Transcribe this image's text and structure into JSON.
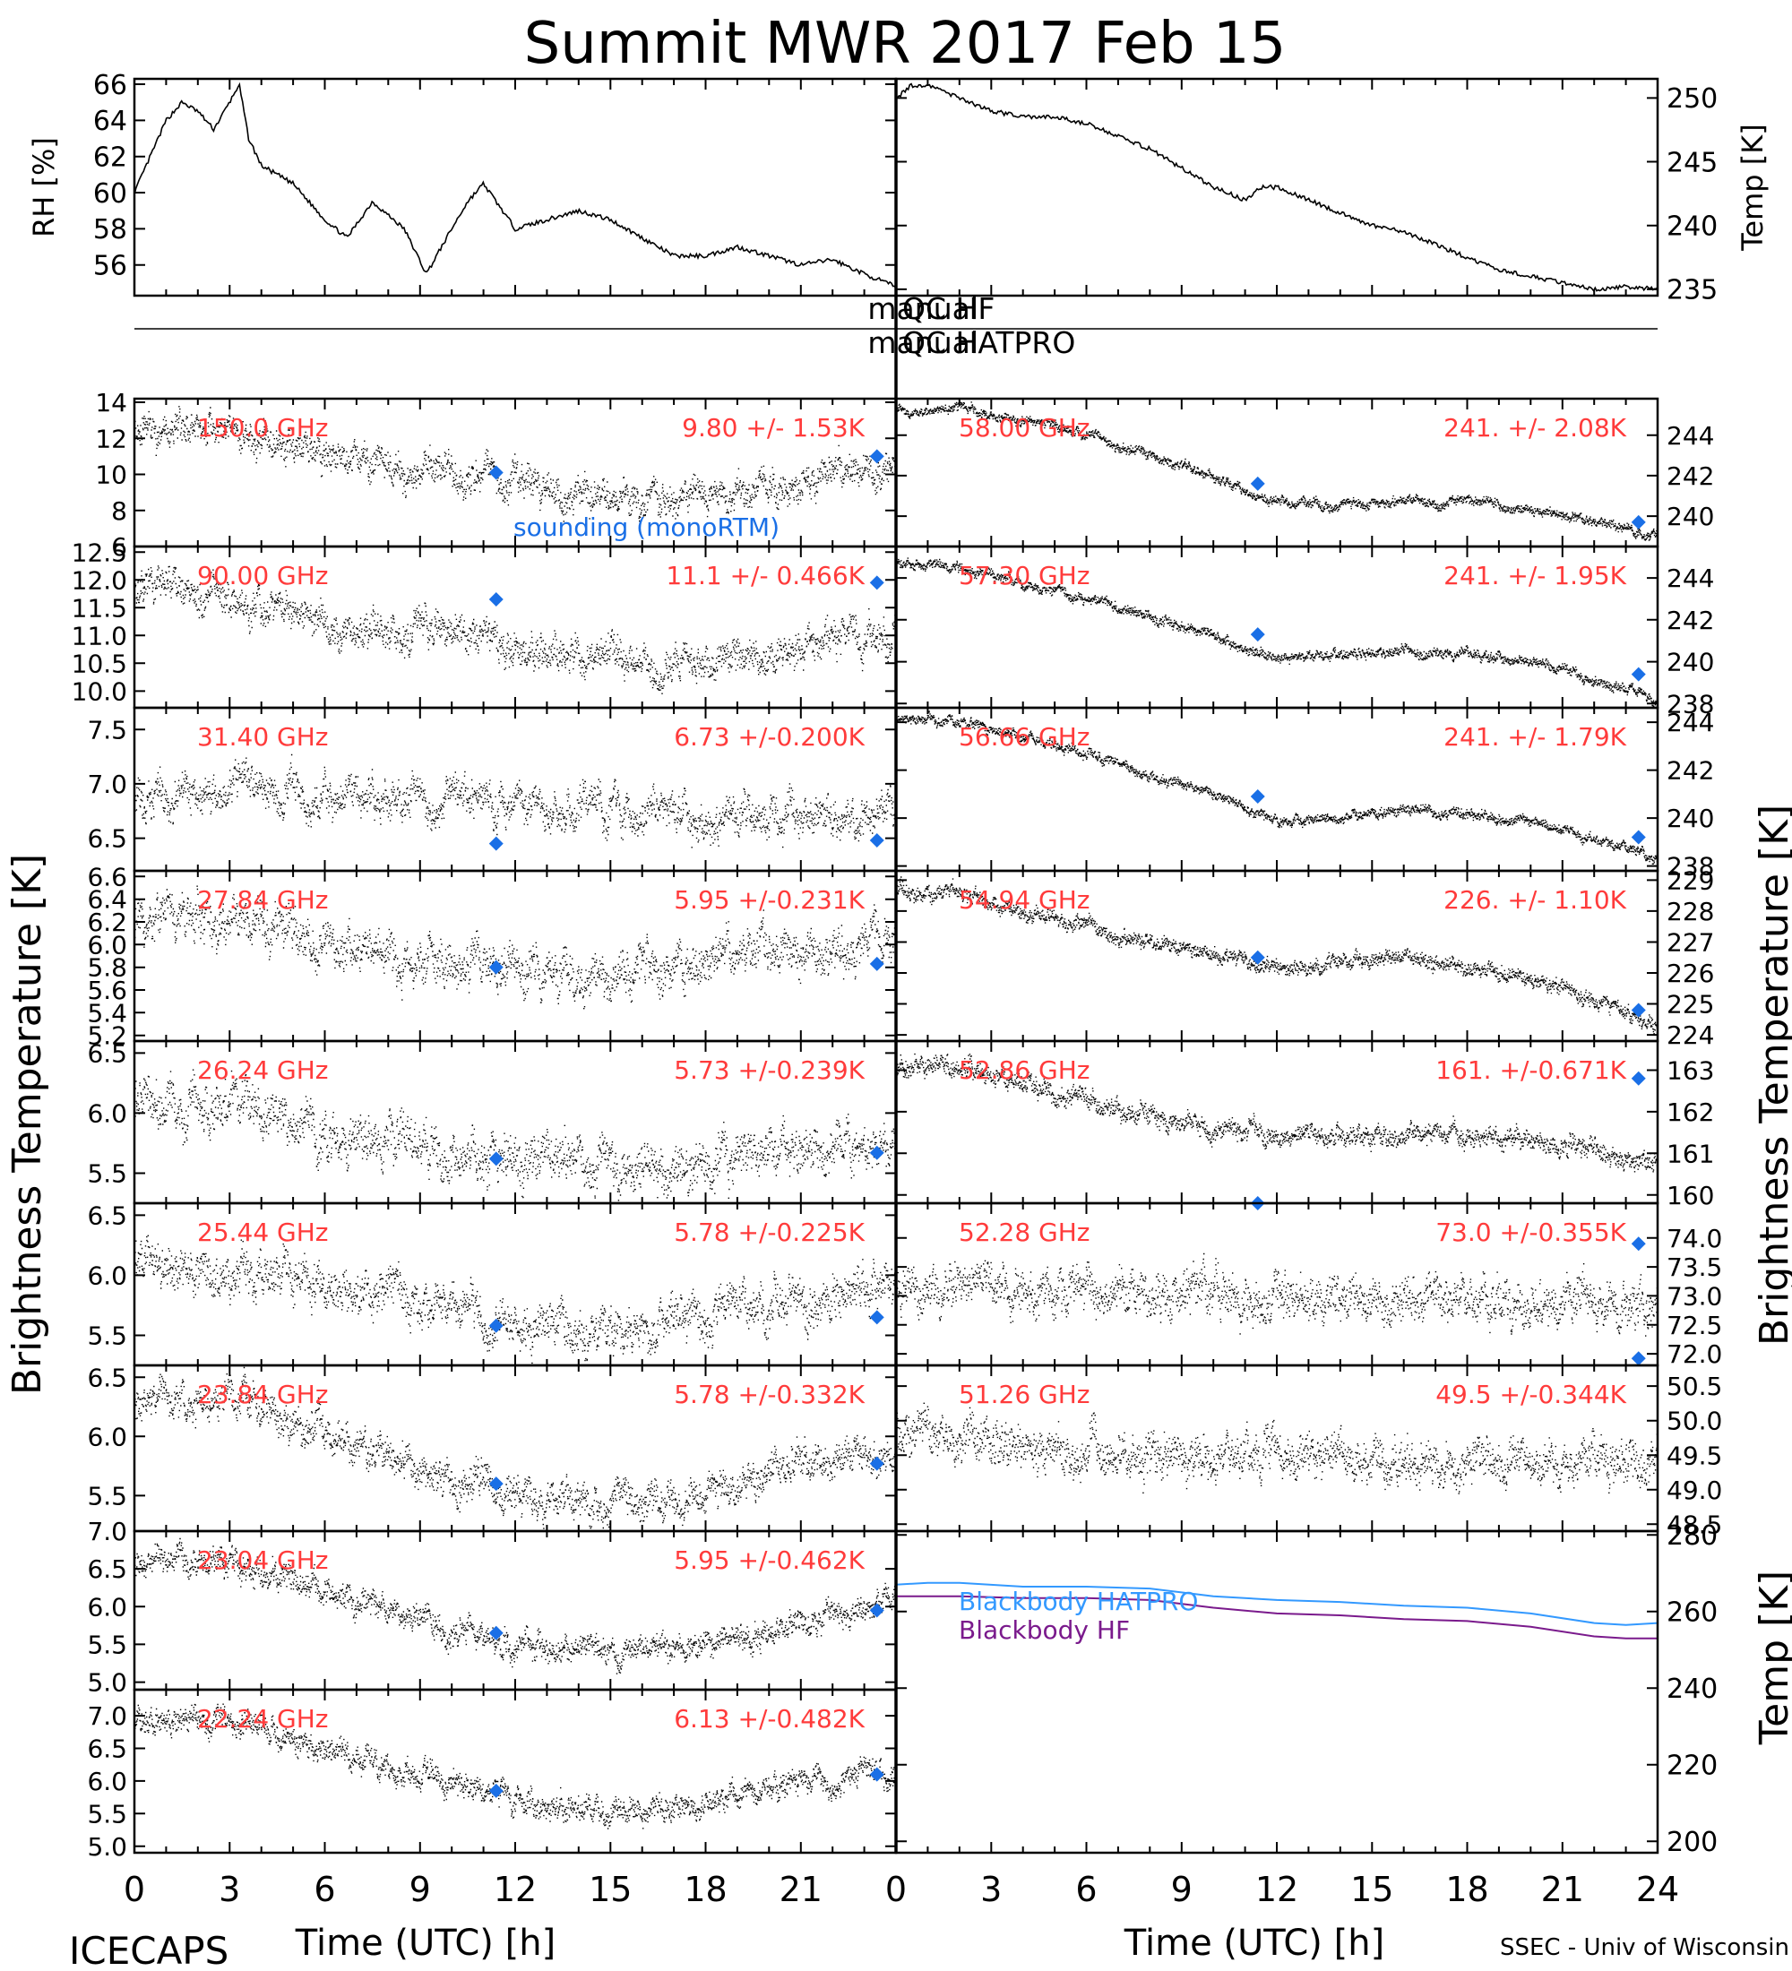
{
  "title": "Summit MWR 2017 Feb 15",
  "footer": {
    "left": "ICECAPS",
    "right": "SSEC - Univ of Wisconsin",
    "xlabel_left": "Time (UTC) [h]",
    "xlabel_right": "Time (UTC) [h]"
  },
  "side_labels": {
    "left": "Brightness Temperature [K]",
    "right": "Brightness Temperature [K]",
    "bottom_right": "Temp [K]"
  },
  "qc_labels": {
    "hf_left": "manual",
    "hf_right": "QC HF",
    "hatpro_left": "manual",
    "hatpro_right": "QC HATPRO"
  },
  "colors": {
    "annotation": "#ff3b3b",
    "sounding": "#1a6fe6",
    "hatpro": "#3399ff",
    "hf": "#7a1a8c",
    "data": "#000000"
  },
  "chart_data": [
    {
      "id": "rh",
      "type": "line",
      "ylabel": "RH [%]",
      "ylim": [
        54.3,
        66.3
      ],
      "yticks": [
        56,
        58,
        60,
        62,
        64,
        66
      ],
      "xlim": [
        0,
        24
      ],
      "x": [
        0,
        0.5,
        1,
        1.5,
        2,
        2.5,
        3,
        3.3,
        3.6,
        4,
        5,
        6,
        6.7,
        7.5,
        8.5,
        9.2,
        10,
        10.5,
        11,
        12,
        13,
        14,
        15,
        16,
        17,
        18,
        19,
        20,
        21,
        22,
        23,
        24
      ],
      "y": [
        60,
        62,
        64,
        65,
        64.5,
        63.5,
        65,
        66,
        63,
        61.5,
        60.5,
        58.5,
        57.5,
        59.5,
        58,
        55.5,
        58,
        59.5,
        60.5,
        58,
        58.5,
        59,
        58.5,
        57.5,
        56.5,
        56.5,
        57,
        56.5,
        56,
        56.3,
        55.5,
        54.8
      ]
    },
    {
      "id": "temp",
      "type": "line",
      "ylabel": "Temp [K]",
      "ylim": [
        234.5,
        251.5
      ],
      "yticks": [
        235,
        240,
        245,
        250
      ],
      "xlim": [
        0,
        24
      ],
      "x": [
        0,
        0.5,
        1,
        2,
        3,
        4,
        5,
        6,
        7,
        8,
        9,
        10,
        11,
        11.5,
        12,
        13,
        14,
        15,
        16,
        17,
        18,
        19,
        20,
        21,
        22,
        23,
        24
      ],
      "y": [
        250,
        251,
        251,
        250,
        249,
        248.5,
        248.5,
        248,
        247,
        246,
        244.5,
        243,
        242,
        243,
        243,
        242,
        241,
        240,
        239.5,
        238.5,
        237.5,
        236.5,
        236,
        235.5,
        235,
        235.2,
        235
      ]
    },
    {
      "id": "ch150",
      "type": "scatter",
      "channel": "150.0 GHz",
      "stats": "9.80 +/- 1.53K",
      "ylim": [
        6,
        14.2
      ],
      "yticks": [
        6,
        8,
        10,
        12,
        14
      ],
      "xlim": [
        0,
        24
      ],
      "x": [
        0,
        2,
        4,
        6,
        8,
        10,
        12,
        14,
        16,
        18,
        20,
        22,
        24
      ],
      "y": [
        12.5,
        12.3,
        12,
        11.3,
        10.5,
        10,
        9.5,
        9,
        8.7,
        8.8,
        9.2,
        9.8,
        10.5
      ],
      "noise": 1.3,
      "sounding": [
        {
          "x": 11.4,
          "y": 10.1
        },
        {
          "x": 23.4,
          "y": 11
        }
      ],
      "note": "sounding (monoRTM)"
    },
    {
      "id": "ch90",
      "type": "scatter",
      "channel": "90.00 GHz",
      "stats": "11.1 +/- 0.466K",
      "ylim": [
        9.7,
        12.6
      ],
      "yticks": [
        10.0,
        10.5,
        11.0,
        11.5,
        12.0,
        12.5
      ],
      "xlim": [
        0,
        24
      ],
      "x": [
        0,
        2,
        4,
        6,
        8,
        10,
        12,
        14,
        16,
        18,
        20,
        22,
        24
      ],
      "y": [
        11.9,
        11.8,
        11.6,
        11.3,
        11.1,
        11.0,
        10.8,
        10.6,
        10.5,
        10.5,
        10.7,
        10.9,
        11.0
      ],
      "noise": 0.45,
      "sounding": [
        {
          "x": 11.4,
          "y": 11.65
        },
        {
          "x": 23.4,
          "y": 11.95
        }
      ]
    },
    {
      "id": "ch3140",
      "type": "scatter",
      "channel": "31.40 GHz",
      "stats": "6.73 +/-0.200K",
      "ylim": [
        6.2,
        7.7
      ],
      "yticks": [
        6.5,
        7.0,
        7.5
      ],
      "xlim": [
        0,
        24
      ],
      "x": [
        0,
        3,
        6,
        9,
        12,
        15,
        18,
        21,
        24
      ],
      "y": [
        6.9,
        7.0,
        6.9,
        6.85,
        6.8,
        6.75,
        6.7,
        6.7,
        6.7
      ],
      "noise": 0.25,
      "sounding": [
        {
          "x": 11.4,
          "y": 6.45
        },
        {
          "x": 23.4,
          "y": 6.48
        }
      ]
    },
    {
      "id": "ch2784",
      "type": "scatter",
      "channel": "27.84 GHz",
      "stats": "5.95 +/-0.231K",
      "ylim": [
        5.15,
        6.65
      ],
      "yticks": [
        5.2,
        5.4,
        5.6,
        5.8,
        6.0,
        6.2,
        6.4,
        6.6
      ],
      "xlim": [
        0,
        24
      ],
      "x": [
        0,
        3,
        6,
        9,
        12,
        15,
        18,
        21,
        24
      ],
      "y": [
        6.2,
        6.25,
        6.0,
        5.9,
        5.8,
        5.75,
        5.85,
        5.95,
        6.0
      ],
      "noise": 0.28,
      "sounding": [
        {
          "x": 11.4,
          "y": 5.8
        },
        {
          "x": 23.4,
          "y": 5.83
        }
      ]
    },
    {
      "id": "ch2624",
      "type": "scatter",
      "channel": "26.24 GHz",
      "stats": "5.73 +/-0.239K",
      "ylim": [
        5.25,
        6.6
      ],
      "yticks": [
        5.5,
        6.0,
        6.5
      ],
      "xlim": [
        0,
        24
      ],
      "x": [
        0,
        3,
        6,
        9,
        12,
        15,
        18,
        21,
        24
      ],
      "y": [
        6.05,
        6.05,
        5.85,
        5.7,
        5.65,
        5.6,
        5.6,
        5.7,
        5.75
      ],
      "noise": 0.28,
      "sounding": [
        {
          "x": 11.4,
          "y": 5.62
        },
        {
          "x": 23.4,
          "y": 5.67
        }
      ]
    },
    {
      "id": "ch2544",
      "type": "scatter",
      "channel": "25.44 GHz",
      "stats": "5.78 +/-0.225K",
      "ylim": [
        5.25,
        6.6
      ],
      "yticks": [
        5.5,
        6.0,
        6.5
      ],
      "xlim": [
        0,
        24
      ],
      "x": [
        0,
        3,
        6,
        9,
        12,
        15,
        18,
        21,
        24
      ],
      "y": [
        6.1,
        6.05,
        5.95,
        5.8,
        5.6,
        5.55,
        5.7,
        5.8,
        5.85
      ],
      "noise": 0.26,
      "sounding": [
        {
          "x": 11.4,
          "y": 5.58
        },
        {
          "x": 23.4,
          "y": 5.65
        }
      ]
    },
    {
      "id": "ch2384",
      "type": "scatter",
      "channel": "23.84 GHz",
      "stats": "5.78 +/-0.332K",
      "ylim": [
        5.2,
        6.6
      ],
      "yticks": [
        5.5,
        6.0,
        6.5
      ],
      "xlim": [
        0,
        24
      ],
      "x": [
        0,
        3,
        6,
        9,
        12,
        15,
        18,
        21,
        24
      ],
      "y": [
        6.3,
        6.35,
        6.0,
        5.7,
        5.5,
        5.4,
        5.55,
        5.8,
        5.85
      ],
      "noise": 0.22,
      "sounding": [
        {
          "x": 11.4,
          "y": 5.6
        },
        {
          "x": 23.4,
          "y": 5.77
        }
      ]
    },
    {
      "id": "ch2304",
      "type": "scatter",
      "channel": "23.04 GHz",
      "stats": "5.95 +/-0.462K",
      "ylim": [
        4.9,
        7.0
      ],
      "yticks": [
        5.0,
        5.5,
        6.0,
        6.5,
        7.0
      ],
      "xlim": [
        0,
        24
      ],
      "x": [
        0,
        3,
        6,
        9,
        12,
        15,
        18,
        21,
        24
      ],
      "y": [
        6.6,
        6.6,
        6.2,
        5.8,
        5.55,
        5.4,
        5.5,
        5.8,
        6.05
      ],
      "noise": 0.25,
      "sounding": [
        {
          "x": 11.4,
          "y": 5.65
        },
        {
          "x": 23.4,
          "y": 5.95
        }
      ]
    },
    {
      "id": "ch2224",
      "type": "scatter",
      "channel": "22.24 GHz",
      "stats": "6.13 +/-0.482K",
      "ylim": [
        4.9,
        7.4
      ],
      "yticks": [
        5.0,
        5.5,
        6.0,
        6.5,
        7.0
      ],
      "xlim": [
        0,
        24
      ],
      "x": [
        0,
        3,
        6,
        9,
        12,
        15,
        18,
        21,
        24
      ],
      "y": [
        6.95,
        6.9,
        6.5,
        6.1,
        5.7,
        5.55,
        5.7,
        6.0,
        6.2
      ],
      "noise": 0.28,
      "sounding": [
        {
          "x": 11.4,
          "y": 5.85
        },
        {
          "x": 23.4,
          "y": 6.1
        }
      ]
    },
    {
      "id": "ch5800",
      "type": "scatter",
      "channel": "58.00 GHz",
      "stats": "241. +/- 2.08K",
      "ylim": [
        238.5,
        245.8
      ],
      "yticks": [
        240,
        242,
        244
      ],
      "xlim": [
        0,
        24
      ],
      "x": [
        0,
        2,
        4,
        6,
        8,
        10,
        11,
        12,
        14,
        16,
        18,
        20,
        22,
        24
      ],
      "y": [
        245.2,
        245.3,
        244.8,
        244,
        243,
        242,
        241.2,
        240.6,
        240.6,
        240.7,
        240.7,
        240.4,
        239.8,
        239
      ],
      "noise": 0.35,
      "sounding": [
        {
          "x": 11.4,
          "y": 241.6
        },
        {
          "x": 23.4,
          "y": 239.7
        }
      ],
      "axis": "right"
    },
    {
      "id": "ch5730",
      "type": "scatter",
      "channel": "57.30 GHz",
      "stats": "241. +/- 1.95K",
      "ylim": [
        237.8,
        245.5
      ],
      "yticks": [
        238,
        240,
        242,
        244
      ],
      "xlim": [
        0,
        24
      ],
      "x": [
        0,
        2,
        4,
        6,
        8,
        10,
        11,
        12,
        14,
        16,
        18,
        20,
        22,
        24
      ],
      "y": [
        244.8,
        244.5,
        243.8,
        243,
        242.2,
        241.3,
        240.6,
        240.2,
        240.3,
        240.5,
        240.3,
        240,
        239.2,
        238.3
      ],
      "noise": 0.35,
      "sounding": [
        {
          "x": 11.4,
          "y": 241.3
        },
        {
          "x": 23.4,
          "y": 239.4
        }
      ],
      "axis": "right"
    },
    {
      "id": "ch5666",
      "type": "scatter",
      "channel": "56.66 GHz",
      "stats": "241. +/- 1.79K",
      "ylim": [
        237.8,
        244.6
      ],
      "yticks": [
        238,
        240,
        242,
        244
      ],
      "xlim": [
        0,
        24
      ],
      "x": [
        0,
        2,
        4,
        6,
        8,
        10,
        11,
        12,
        14,
        16,
        18,
        20,
        22,
        24
      ],
      "y": [
        244.2,
        244,
        243.4,
        242.7,
        241.8,
        241.0,
        240.3,
        239.9,
        240.1,
        240.4,
        240.2,
        239.9,
        239.2,
        238.3
      ],
      "noise": 0.3,
      "sounding": [
        {
          "x": 11.4,
          "y": 240.9
        },
        {
          "x": 23.4,
          "y": 239.2
        }
      ],
      "axis": "right"
    },
    {
      "id": "ch5486",
      "type": "scatter",
      "channel": "54.94 GHz",
      "stats": "226. +/- 1.10K",
      "ylim": [
        223.8,
        229.3
      ],
      "yticks": [
        224,
        225,
        226,
        227,
        228,
        229
      ],
      "xlim": [
        0,
        24
      ],
      "x": [
        0,
        2,
        4,
        6,
        8,
        10,
        11,
        12,
        14,
        16,
        18,
        20,
        22,
        24
      ],
      "y": [
        228.8,
        228.6,
        228,
        227.5,
        227,
        226.6,
        226.3,
        226.1,
        226.4,
        226.5,
        226.2,
        225.8,
        225.2,
        224.3
      ],
      "noise": 0.35,
      "sounding": [
        {
          "x": 11.4,
          "y": 226.5
        },
        {
          "x": 23.4,
          "y": 224.8
        }
      ],
      "axis": "right"
    },
    {
      "id": "ch5286",
      "type": "scatter",
      "channel": "52.86 GHz",
      "stats": "161. +/-0.671K",
      "ylim": [
        159.8,
        163.7
      ],
      "yticks": [
        160,
        161,
        162,
        163
      ],
      "xlim": [
        0,
        24
      ],
      "x": [
        0,
        2,
        4,
        6,
        8,
        10,
        12,
        14,
        16,
        18,
        20,
        22,
        24
      ],
      "y": [
        163.1,
        163.1,
        162.7,
        162.3,
        161.9,
        161.6,
        161.4,
        161.4,
        161.5,
        161.4,
        161.3,
        161.1,
        160.8
      ],
      "noise": 0.35,
      "sounding": [
        {
          "x": 23.4,
          "y": 162.8
        }
      ],
      "axis": "right"
    },
    {
      "id": "ch5228",
      "type": "scatter",
      "channel": "52.28 GHz",
      "stats": "73.0 +/-0.355K",
      "ylim": [
        71.8,
        74.6
      ],
      "yticks": [
        72.0,
        72.5,
        73.0,
        73.5,
        74.0
      ],
      "xlim": [
        0,
        24
      ],
      "x": [
        0,
        6,
        12,
        18,
        24
      ],
      "y": [
        73.2,
        73.1,
        73.0,
        72.9,
        72.9
      ],
      "noise": 0.55,
      "sounding": [
        {
          "x": 11.4,
          "y": 74.6
        },
        {
          "x": 23.4,
          "y": 73.9
        }
      ],
      "axis": "right"
    },
    {
      "id": "ch5126",
      "type": "scatter",
      "channel": "51.26 GHz",
      "stats": "49.5 +/-0.344K",
      "ylim": [
        48.4,
        50.8
      ],
      "yticks": [
        48.5,
        49.0,
        49.5,
        50.0,
        50.5
      ],
      "xlim": [
        0,
        24
      ],
      "x": [
        0,
        6,
        12,
        18,
        24
      ],
      "y": [
        49.8,
        49.6,
        49.5,
        49.4,
        49.4
      ],
      "noise": 0.45,
      "sounding": [
        {
          "x": 23.4,
          "y": 50.9
        }
      ],
      "axis": "right"
    },
    {
      "id": "blackbody",
      "type": "line",
      "axis": "right",
      "ylim": [
        197,
        281
      ],
      "yticks": [
        200,
        220,
        240,
        260,
        280
      ],
      "xlim": [
        0,
        24
      ],
      "series": [
        {
          "name": "Blackbody HATPRO",
          "x": [
            0,
            1,
            2,
            4,
            6,
            8,
            10,
            12,
            14,
            16,
            18,
            20,
            22,
            23,
            24
          ],
          "y": [
            267,
            267.5,
            267.5,
            266.5,
            266.5,
            266,
            264,
            263,
            262.5,
            261.5,
            261,
            259.5,
            257,
            256.5,
            257
          ]
        },
        {
          "name": "Blackbody HF",
          "x": [
            0,
            1,
            2,
            4,
            6,
            8,
            10,
            12,
            14,
            16,
            18,
            20,
            22,
            23,
            24
          ],
          "y": [
            264,
            264,
            264,
            263.5,
            263.5,
            263,
            261,
            259.5,
            259,
            258,
            257.5,
            256,
            253.5,
            253,
            253
          ]
        }
      ]
    }
  ]
}
